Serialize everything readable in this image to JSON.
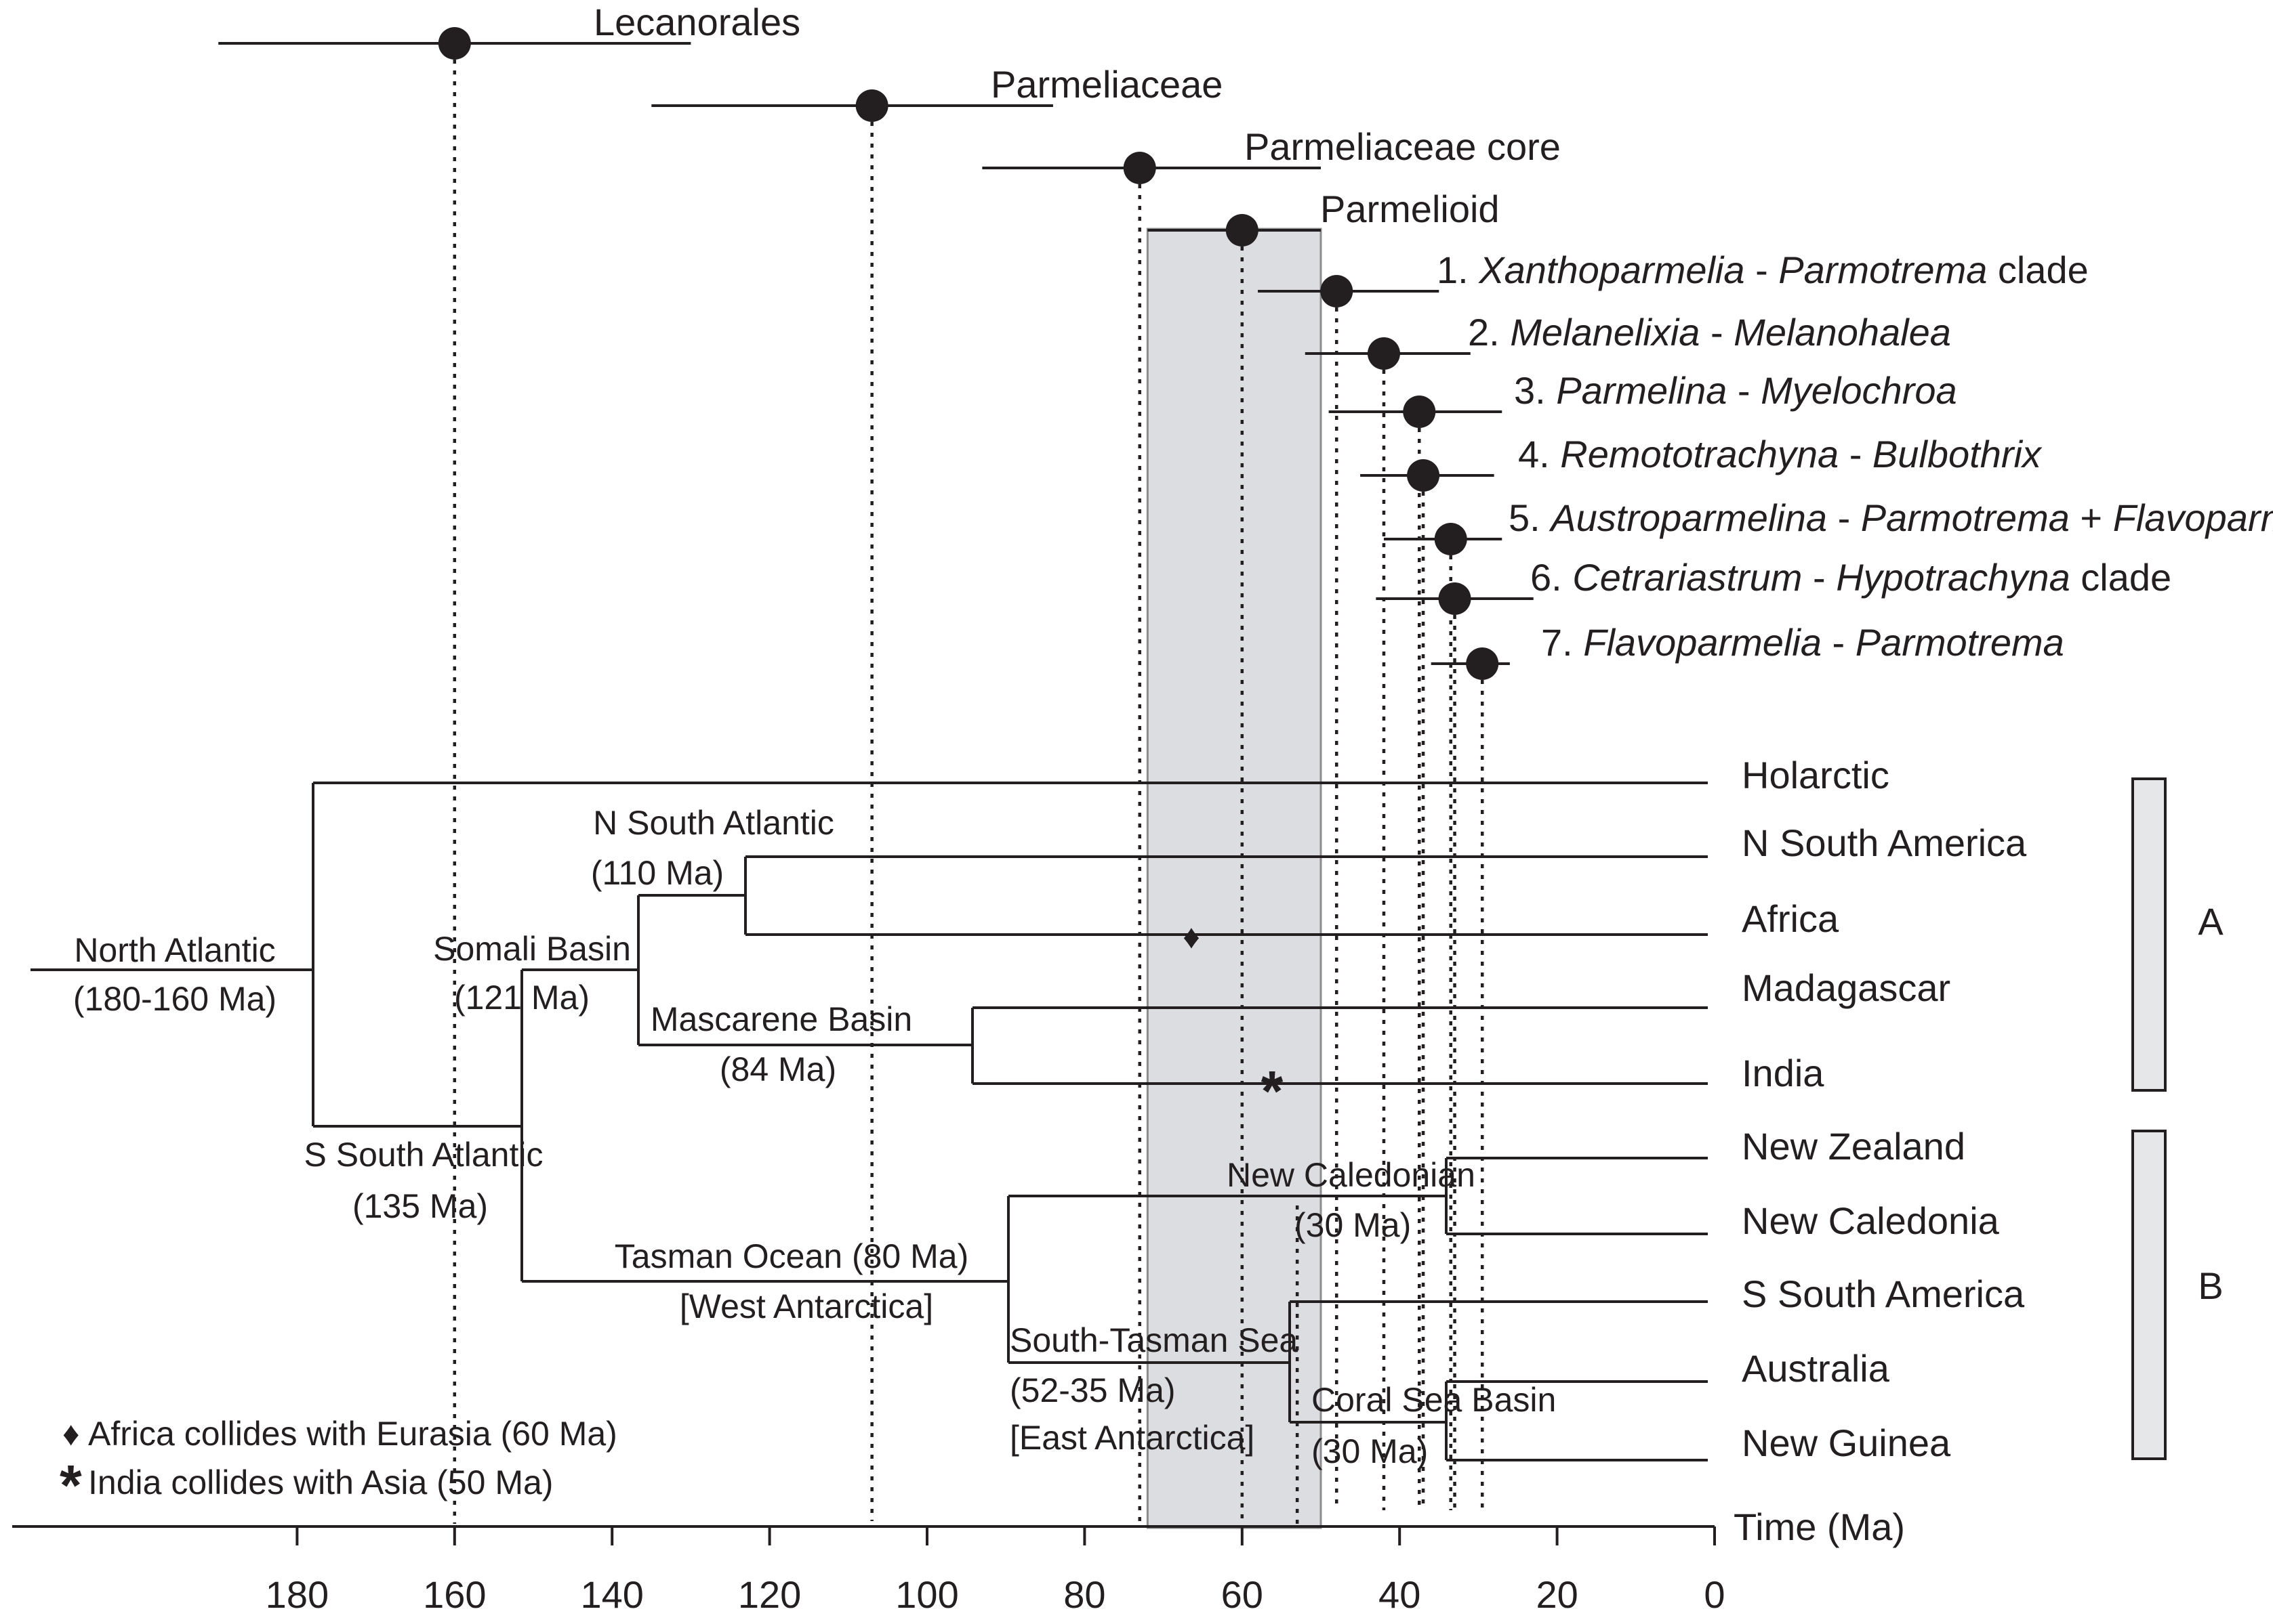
{
  "clades": [
    {
      "id": "lecanorales",
      "label_plain": "Lecanorales",
      "age": 160,
      "range": [
        190,
        130
      ]
    },
    {
      "id": "parmeliaceae",
      "label_plain": "Parmeliaceae",
      "age": 107,
      "range": [
        135,
        84
      ]
    },
    {
      "id": "parmeliaceae-core",
      "label_plain": "Parmeliaceae core",
      "age": 73,
      "range": [
        93,
        50
      ]
    },
    {
      "id": "parmelioid",
      "label_plain": "Parmelioid",
      "age": 60,
      "range": [
        72,
        50
      ]
    },
    {
      "id": "clade-1",
      "num": "1.",
      "g1": "Xanthoparmelia",
      "sep": " - ",
      "g2": "Parmotrema",
      "tail": " clade",
      "age": 48,
      "range": [
        58,
        35
      ]
    },
    {
      "id": "clade-2",
      "num": "2.",
      "g1": "Melanelixia",
      "sep": " - ",
      "g2": "Melanohalea",
      "tail": "",
      "age": 42,
      "range": [
        52,
        31
      ]
    },
    {
      "id": "clade-3",
      "num": "3.",
      "g1": "Parmelina",
      "sep": " - ",
      "g2": "Myelochroa",
      "tail": "",
      "age": 37.5,
      "range": [
        49,
        27
      ]
    },
    {
      "id": "clade-4",
      "num": "4.",
      "g1": "Remototrachyna",
      "sep": " - ",
      "g2": "Bulbothrix",
      "tail": "",
      "age": 37,
      "range": [
        45,
        28
      ]
    },
    {
      "id": "clade-5",
      "num": "5.",
      "g1": "Austroparmelina",
      "sep": " - ",
      "g2": "Parmotrema",
      "plus": " + ",
      "g3": "Flavoparmelia",
      "age": 33.5,
      "range": [
        42,
        27
      ]
    },
    {
      "id": "clade-6",
      "num": "6.",
      "g1": "Cetrariastrum",
      "sep": " - ",
      "g2": "Hypotrachyna",
      "tail": " clade",
      "age": 33,
      "range": [
        43,
        23
      ]
    },
    {
      "id": "clade-7",
      "num": "7.",
      "g1": "Flavoparmelia",
      "sep": " - ",
      "g2": "Parmotrema",
      "tail": "",
      "age": 29.5,
      "range": [
        36,
        26
      ]
    }
  ],
  "regions": [
    "Holarctic",
    "N South America",
    "Africa",
    "Madagascar",
    "India",
    "New Zealand",
    "New Caledonia",
    "S South America",
    "Australia",
    "New Guinea"
  ],
  "groups": {
    "a": "A",
    "b": "B"
  },
  "events": {
    "north_atlantic": {
      "name": "North Atlantic",
      "age": "(180-160 Ma)"
    },
    "s_south_atlantic": {
      "name": "S South Atlantic",
      "age": "(135 Ma)"
    },
    "somali_basin": {
      "name": "Somali Basin",
      "age": "(121 Ma)"
    },
    "n_south_atlantic": {
      "name": "N South Atlantic",
      "age": "(110 Ma)"
    },
    "mascarene_basin": {
      "name": "Mascarene Basin",
      "age": "(84 Ma)"
    },
    "tasman_ocean": {
      "name": "Tasman Ocean (80 Ma)",
      "note": "[West Antarctica]"
    },
    "south_tasman_sea": {
      "name": "South-Tasman Sea",
      "age": "(52-35 Ma)",
      "note": "[East Antarctica]"
    },
    "new_caledonian": {
      "name": "New Caledonian",
      "age": "(30 Ma)"
    },
    "coral_sea_basin": {
      "name": "Coral Sea Basin",
      "age": "(30 Ma)"
    }
  },
  "legend": {
    "africa": {
      "symbol": "♦",
      "text": "Africa collides with Eurasia (60 Ma)"
    },
    "india": {
      "symbol": "*",
      "text": "India collides with Asia (50 Ma)"
    }
  },
  "axis": {
    "label": "Time (Ma)",
    "ticks": [
      180,
      160,
      140,
      120,
      100,
      80,
      60,
      40,
      20,
      0
    ],
    "domain": [
      190,
      0
    ]
  },
  "shaded_interval": [
    72,
    50
  ],
  "colors": {
    "ink": "#231f20",
    "shade": "#dcdde0",
    "shade_stroke": "#8c8c8c",
    "box_fill": "#e6e7e8"
  }
}
